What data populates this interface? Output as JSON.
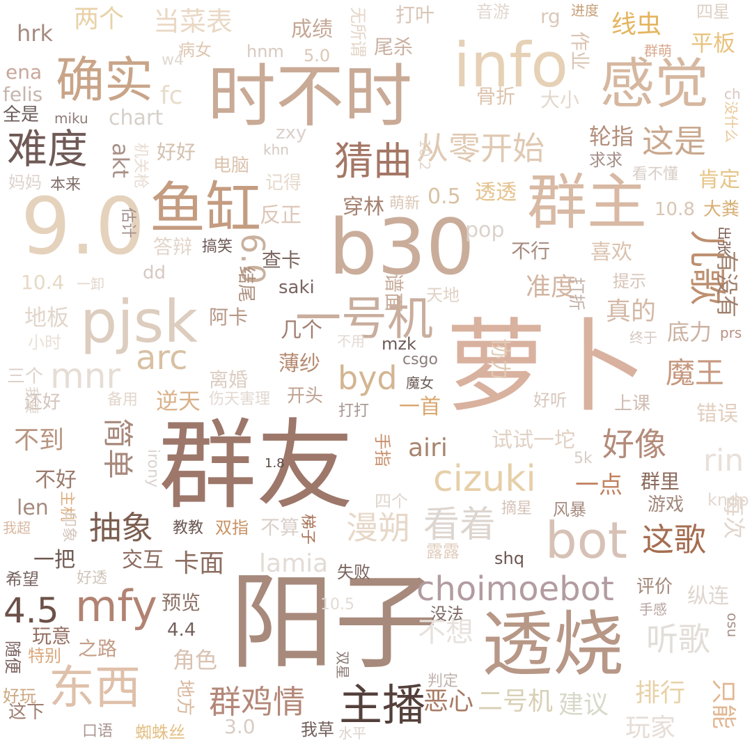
{
  "words": [
    {
      "text": "群友",
      "color": "#9c776a"
    },
    {
      "text": "阳子",
      "color": "#a78a7c"
    },
    {
      "text": "萝卜",
      "color": "#d9b19f"
    },
    {
      "text": "透烧",
      "color": "#b79786"
    },
    {
      "text": "时不时",
      "color": "#c9aa96"
    },
    {
      "text": "9.0",
      "color": "#e5d2bd"
    },
    {
      "text": "b30",
      "color": "#c9ad9a"
    },
    {
      "text": "info",
      "color": "#e6d1b6"
    },
    {
      "text": "感觉",
      "color": "#d6b79f"
    },
    {
      "text": "群主",
      "color": "#d8b9a4"
    },
    {
      "text": "鱼缸",
      "color": "#c49c80"
    },
    {
      "text": "pjsk",
      "color": "#ddcdbf"
    },
    {
      "text": "确实",
      "color": "#c9a488"
    },
    {
      "text": "一号机",
      "color": "#c9ad9d"
    },
    {
      "text": "bot",
      "color": "#d7c1b6"
    },
    {
      "text": "cizuki",
      "color": "#e6cfa8"
    },
    {
      "text": "choimoebot",
      "color": "#b29ba1"
    },
    {
      "text": "mfy",
      "color": "#b18372"
    },
    {
      "text": "东西",
      "color": "#dfc0aa"
    },
    {
      "text": "主播",
      "color": "#54403b"
    },
    {
      "text": "mnr",
      "color": "#e6ddd5"
    },
    {
      "text": "arc",
      "color": "#d8c0a3"
    },
    {
      "text": "难度",
      "color": "#6f5a56"
    },
    {
      "text": "猜曲",
      "color": "#a47765"
    },
    {
      "text": "从零开始",
      "color": "#e0c9b2"
    },
    {
      "text": "这是",
      "color": "#c9a88e"
    },
    {
      "text": "儿歌",
      "color": "#bd9071"
    },
    {
      "text": "6.0",
      "color": "#c9b19e"
    },
    {
      "text": "byd",
      "color": "#d3b591"
    },
    {
      "text": "漫朔",
      "color": "#e7d8c9"
    },
    {
      "text": "抽象",
      "color": "#7b5d4f"
    },
    {
      "text": "好像",
      "color": "#b38b7a"
    },
    {
      "text": "这歌",
      "color": "#a56d50"
    },
    {
      "text": "听歌",
      "color": "#e3ddd8"
    },
    {
      "text": "4.5",
      "color": "#6c5148"
    },
    {
      "text": "群鸡情",
      "color": "#b38878"
    },
    {
      "text": "魔王",
      "color": "#c6987f"
    },
    {
      "text": "两个",
      "color": "#e8d2a7"
    },
    {
      "text": "当菜表",
      "color": "#ead8c5"
    },
    {
      "text": "hrk",
      "color": "#a58b80"
    },
    {
      "text": "成绩",
      "color": "#c4a796"
    },
    {
      "text": "打叶",
      "color": "#d8c5b7"
    },
    {
      "text": "音游",
      "color": "#e2d7cf"
    },
    {
      "text": "rg",
      "color": "#dcc8b9"
    },
    {
      "text": "进度",
      "color": "#c7a079"
    },
    {
      "text": "四星",
      "color": "#ddd0c5"
    },
    {
      "text": "线虫",
      "color": "#e4b55f"
    },
    {
      "text": "平板",
      "color": "#e8c37f"
    },
    {
      "text": "群萌",
      "color": "#d9a88e"
    },
    {
      "text": "病女",
      "color": "#dfc7b2"
    },
    {
      "text": "hnm",
      "color": "#d8c9bf"
    },
    {
      "text": "5.0",
      "color": "#dcc7b6"
    },
    {
      "text": "尾杀",
      "color": "#c9b0a1"
    },
    {
      "text": "无所谓",
      "color": "#e4d6c9"
    },
    {
      "text": "作业",
      "color": "#dbc4b3"
    },
    {
      "text": "w4",
      "color": "#ded9cf"
    },
    {
      "text": "ena",
      "color": "#c8a79b"
    },
    {
      "text": "felis",
      "color": "#c6b4ac"
    },
    {
      "text": "全是",
      "color": "#6a5b58"
    },
    {
      "text": "miku",
      "color": "#8e7b78"
    },
    {
      "text": "chart",
      "color": "#d7d0c9"
    },
    {
      "text": "fc",
      "color": "#e8dccb"
    },
    {
      "text": "骨折",
      "color": "#ddc3ac"
    },
    {
      "text": "大小",
      "color": "#e3d8cd"
    },
    {
      "text": "ch",
      "color": "#d7c7c1"
    },
    {
      "text": "没什么",
      "color": "#e9c899"
    },
    {
      "text": "zxy",
      "color": "#dbd0cb"
    },
    {
      "text": "khn",
      "color": "#d5c9c3"
    },
    {
      "text": "10.2",
      "color": "#e3d7cc"
    },
    {
      "text": "轮指",
      "color": "#b38e7a"
    },
    {
      "text": "求求",
      "color": "#a38e87"
    },
    {
      "text": "好好",
      "color": "#d3c1ae"
    },
    {
      "text": "akt",
      "color": "#a99188"
    },
    {
      "text": "机关枪",
      "color": "#e8dcd2"
    },
    {
      "text": "电脑",
      "color": "#dcc3ad"
    },
    {
      "text": "记得",
      "color": "#e6d9cb"
    },
    {
      "text": "看不懂",
      "color": "#d7cdc6"
    },
    {
      "text": "肯定",
      "color": "#e7c487"
    },
    {
      "text": "妈妈",
      "color": "#ddd3cd"
    },
    {
      "text": "本来",
      "color": "#806d68"
    },
    {
      "text": "萌新",
      "color": "#dbc8b7"
    },
    {
      "text": "0.5",
      "color": "#d9c1a3"
    },
    {
      "text": "透透",
      "color": "#e4c28e"
    },
    {
      "text": "10.8",
      "color": "#d9c5b3"
    },
    {
      "text": "大粪",
      "color": "#d7b074"
    },
    {
      "text": "估计",
      "color": "#a28f89"
    },
    {
      "text": "反正",
      "color": "#ddc7b8"
    },
    {
      "text": "穿林",
      "color": "#a58271"
    },
    {
      "text": "pop",
      "color": "#dbd2cb"
    },
    {
      "text": "出张",
      "color": "#7b5d51"
    },
    {
      "text": "答辩",
      "color": "#e2d5ca"
    },
    {
      "text": "搞笑",
      "color": "#6e5854"
    },
    {
      "text": "不行",
      "color": "#a58b7f"
    },
    {
      "text": "喜欢",
      "color": "#dbc2ae"
    },
    {
      "text": "有没有",
      "color": "#9f7f6b"
    },
    {
      "text": "查卡",
      "color": "#7b6660"
    },
    {
      "text": "10.4",
      "color": "#e6d9c4"
    },
    {
      "text": "一卸",
      "color": "#e3d6cc"
    },
    {
      "text": "dd",
      "color": "#d6c9c2"
    },
    {
      "text": "saki",
      "color": "#7a6560"
    },
    {
      "text": "结尾",
      "color": "#ad8f7e"
    },
    {
      "text": "谱面",
      "color": "#c8ac9a"
    },
    {
      "text": "天地",
      "color": "#e0d2c6"
    },
    {
      "text": "打折",
      "color": "#c2b0a6"
    },
    {
      "text": "提示",
      "color": "#d7c4b8"
    },
    {
      "text": "准度",
      "color": "#d2b4a0"
    },
    {
      "text": "地板",
      "color": "#e2d6cb"
    },
    {
      "text": "阿卡",
      "color": "#b59685"
    },
    {
      "text": "几个",
      "color": "#a07e6f"
    },
    {
      "text": "真的",
      "color": "#d3b8a5"
    },
    {
      "text": "小时",
      "color": "#e9e0d6"
    },
    {
      "text": "不用",
      "color": "#e2d9d3"
    },
    {
      "text": "协力",
      "color": "#e1cab4"
    },
    {
      "text": "底力",
      "color": "#cbb2a2"
    },
    {
      "text": "终于",
      "color": "#d6c9c1"
    },
    {
      "text": "prs",
      "color": "#b79184"
    },
    {
      "text": "mzk",
      "color": "#6c5b58"
    },
    {
      "text": "离婚",
      "color": "#dccdc2"
    },
    {
      "text": "薄纱",
      "color": "#b58a70"
    },
    {
      "text": "csgo",
      "color": "#8b7d7a"
    },
    {
      "text": "三个",
      "color": "#ddd1ca"
    },
    {
      "text": "我要",
      "color": "#e0d5ce"
    },
    {
      "text": "还好",
      "color": "#d3c4bb"
    },
    {
      "text": "备用",
      "color": "#e3d6cc"
    },
    {
      "text": "伤天害理",
      "color": "#e2d8d1"
    },
    {
      "text": "逆天",
      "color": "#d9b18a"
    },
    {
      "text": "开头",
      "color": "#bea291"
    },
    {
      "text": "一首",
      "color": "#d8a76f"
    },
    {
      "text": "魔女",
      "color": "#6e5c58"
    },
    {
      "text": "好听",
      "color": "#d7c7bd"
    },
    {
      "text": "上课",
      "color": "#d0bcb2"
    },
    {
      "text": "错误",
      "color": "#e2cfc0"
    },
    {
      "text": "打打",
      "color": "#a69590"
    },
    {
      "text": "不到",
      "color": "#b8947f"
    },
    {
      "text": "简单",
      "color": "#a7887c"
    },
    {
      "text": "手指",
      "color": "#c78f6b"
    },
    {
      "text": "airi",
      "color": "#a8846f"
    },
    {
      "text": "试试一坨",
      "color": "#e0d1c4"
    },
    {
      "text": "不好",
      "color": "#9b7a6b"
    },
    {
      "text": "1.8",
      "color": "#5c4a45"
    },
    {
      "text": "irony",
      "color": "#dad3cf"
    },
    {
      "text": "5k",
      "color": "#d6cdc7"
    },
    {
      "text": "rin",
      "color": "#e8e0d9"
    },
    {
      "text": "群里",
      "color": "#8b6a5b"
    },
    {
      "text": "一点",
      "color": "#c0815d"
    },
    {
      "text": "len",
      "color": "#a48a7e"
    },
    {
      "text": "游戏",
      "color": "#a1877b"
    },
    {
      "text": "主机",
      "color": "#dbae7e"
    },
    {
      "text": "看着",
      "color": "#ddd5cf"
    },
    {
      "text": "四个",
      "color": "#e0d6ce"
    },
    {
      "text": "摘星",
      "color": "#d6c3b7"
    },
    {
      "text": "风暴",
      "color": "#a58a7f"
    },
    {
      "text": "kndp",
      "color": "#e3d9d1"
    },
    {
      "text": "我超",
      "color": "#d8b8a2"
    },
    {
      "text": "印象",
      "color": "#d5c7bf"
    },
    {
      "text": "教教",
      "color": "#6b5752"
    },
    {
      "text": "双指",
      "color": "#c99263"
    },
    {
      "text": "不算",
      "color": "#dbd0ca"
    },
    {
      "text": "梯子",
      "color": "#a87357"
    },
    {
      "text": "每次",
      "color": "#e2d6cc"
    },
    {
      "text": "露露",
      "color": "#e0ccbc"
    },
    {
      "text": "shq",
      "color": "#6b5550"
    },
    {
      "text": "一把",
      "color": "#6f5852"
    },
    {
      "text": "交互",
      "color": "#8a6a5d"
    },
    {
      "text": "卡面",
      "color": "#8c6d60"
    },
    {
      "text": "lamia",
      "color": "#e3dbd5"
    },
    {
      "text": "失败",
      "color": "#7a6560"
    },
    {
      "text": "希望",
      "color": "#786460"
    },
    {
      "text": "好透",
      "color": "#d0c4ba"
    },
    {
      "text": "评价",
      "color": "#a28678"
    },
    {
      "text": "预览",
      "color": "#8b7066"
    },
    {
      "text": "纵连",
      "color": "#e0d6cf"
    },
    {
      "text": "10.5",
      "color": "#e2dbd5"
    },
    {
      "text": "手感",
      "color": "#b8a6a0"
    },
    {
      "text": "没法",
      "color": "#7d6a66"
    },
    {
      "text": "4.4",
      "color": "#73605b"
    },
    {
      "text": "玩意",
      "color": "#937063"
    },
    {
      "text": "随便",
      "color": "#7b6560"
    },
    {
      "text": "特别",
      "color": "#dba87a"
    },
    {
      "text": "之路",
      "color": "#c49c86"
    },
    {
      "text": "不想",
      "color": "#e8e1db"
    },
    {
      "text": "osu",
      "color": "#a69189"
    },
    {
      "text": "角色",
      "color": "#d9c2b1"
    },
    {
      "text": "双星",
      "color": "#8b7a74"
    },
    {
      "text": "判定",
      "color": "#bfb3ad"
    },
    {
      "text": "好玩",
      "color": "#cba781"
    },
    {
      "text": "地方",
      "color": "#d8b89e"
    },
    {
      "text": "建议",
      "color": "#d8d8ca"
    },
    {
      "text": "排行",
      "color": "#e8d2a7"
    },
    {
      "text": "只能",
      "color": "#e1b792"
    },
    {
      "text": "这下",
      "color": "#9c7d70"
    },
    {
      "text": "恶心",
      "color": "#a87a63"
    },
    {
      "text": "二号机",
      "color": "#d8d0b5"
    },
    {
      "text": "玩家",
      "color": "#e6ddd6"
    },
    {
      "text": "口语",
      "color": "#a99690"
    },
    {
      "text": "蜘蛛丝",
      "color": "#e3bf83"
    },
    {
      "text": "3.0",
      "color": "#d8ccc4"
    },
    {
      "text": "我草",
      "color": "#6f5d59"
    },
    {
      "text": "水平",
      "color": "#ddd2cb"
    }
  ]
}
